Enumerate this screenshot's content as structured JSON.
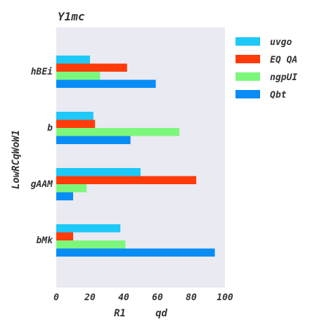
{
  "chart_data": {
    "type": "bar",
    "orientation": "horizontal",
    "title": "Y1mc",
    "xlabel": "R1     qd",
    "ylabel": "LowRCqWoW1",
    "categories": [
      "hBEi",
      "b",
      "gAAM",
      "bMk"
    ],
    "xlim": [
      0,
      100
    ],
    "xticks": [
      "0",
      "20",
      "40",
      "60",
      "80",
      "100"
    ],
    "grid": false,
    "legend_position": "right",
    "series": [
      {
        "name": "uvgo",
        "color": "#1ec8f7",
        "values": [
          20,
          22,
          50,
          38
        ]
      },
      {
        "name": "EQ QA",
        "color": "#ff3b0a",
        "values": [
          42,
          23,
          83,
          10
        ]
      },
      {
        "name": "ngpUI",
        "color": "#7cf77c",
        "values": [
          26,
          73,
          18,
          41
        ]
      },
      {
        "name": "Qbt",
        "color": "#0a8cf5",
        "values": [
          59,
          44,
          10,
          94
        ]
      }
    ]
  }
}
